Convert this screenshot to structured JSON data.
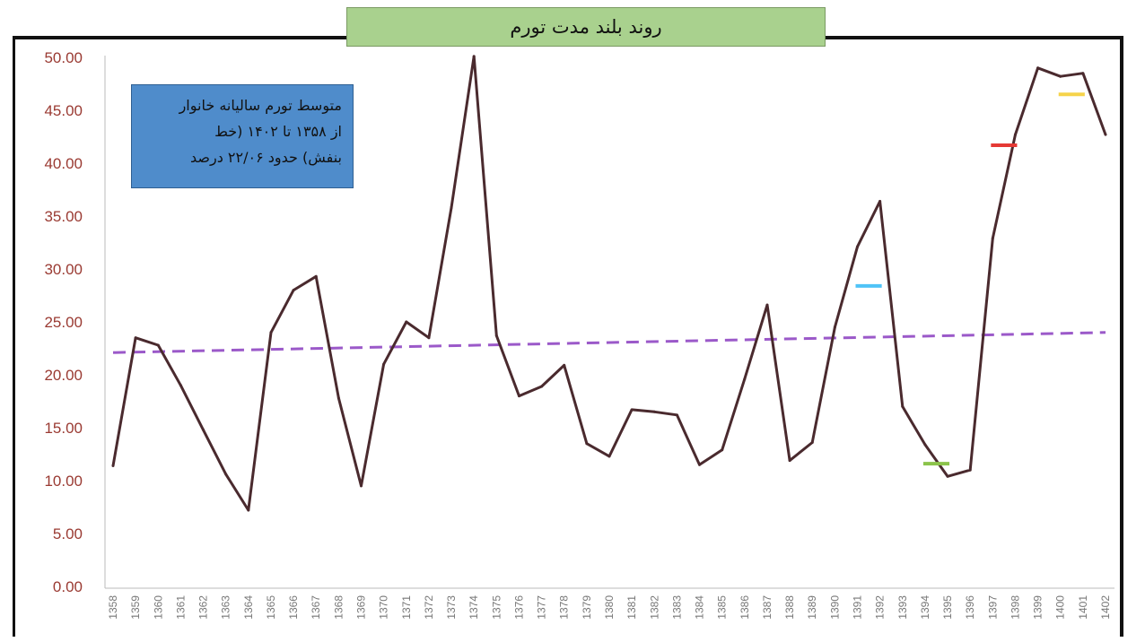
{
  "title": "روند بلند مدت تورم",
  "note_lines": [
    "متوسط تورم سالیانه خانوار",
    "از ۱۳۵۸ تا ۱۴۰۲ (خط",
    "بنفش) حدود ۲۲/۰۶ درصد"
  ],
  "colors": {
    "line": "#4a2a2e",
    "trend": "#9b59c9",
    "axis": "#bbbbbb",
    "title_bg": "#a9d18e",
    "note_bg": "#4f8ccb"
  },
  "chart_data": {
    "type": "line",
    "ylim": [
      0,
      50
    ],
    "yticks": [
      "0.00",
      "5.00",
      "10.00",
      "15.00",
      "20.00",
      "25.00",
      "30.00",
      "35.00",
      "40.00",
      "45.00",
      "50.00"
    ],
    "categories": [
      "1358",
      "1359",
      "1360",
      "1361",
      "1362",
      "1363",
      "1364",
      "1365",
      "1366",
      "1367",
      "1368",
      "1369",
      "1370",
      "1371",
      "1372",
      "1373",
      "1374",
      "1375",
      "1376",
      "1377",
      "1378",
      "1379",
      "1380",
      "1381",
      "1382",
      "1383",
      "1384",
      "1385",
      "1386",
      "1387",
      "1388",
      "1389",
      "1390",
      "1391",
      "1392",
      "1393",
      "1394",
      "1395",
      "1396",
      "1397",
      "1398",
      "1399",
      "1400",
      "1401",
      "1402"
    ],
    "series": [
      {
        "values": [
          11.4,
          23.5,
          22.8,
          19.0,
          14.8,
          10.6,
          7.2,
          24.0,
          28.0,
          29.3,
          17.8,
          9.5,
          21.0,
          25.0,
          23.5,
          35.8,
          50.1,
          23.7,
          18.0,
          18.9,
          20.9,
          13.5,
          12.3,
          16.7,
          16.5,
          16.2,
          11.5,
          12.9,
          19.6,
          26.6,
          11.9,
          13.6,
          24.5,
          32.1,
          36.4,
          17.0,
          13.4,
          10.4,
          11.0,
          32.9,
          42.7,
          49.0,
          48.2,
          48.5,
          42.7
        ]
      }
    ],
    "trend": {
      "start": 22.1,
      "end": 24.0
    },
    "markers": [
      {
        "category": "1391",
        "to_category": "1392",
        "value": 28.4,
        "color": "#4fc3f7"
      },
      {
        "category": "1394",
        "to_category": "1395",
        "value": 11.6,
        "color": "#8bc34a"
      },
      {
        "category": "1397",
        "to_category": "1398",
        "value": 41.7,
        "color": "#e53935"
      },
      {
        "category": "1400",
        "to_category": "1401",
        "value": 46.5,
        "color": "#f6d34a"
      }
    ]
  }
}
